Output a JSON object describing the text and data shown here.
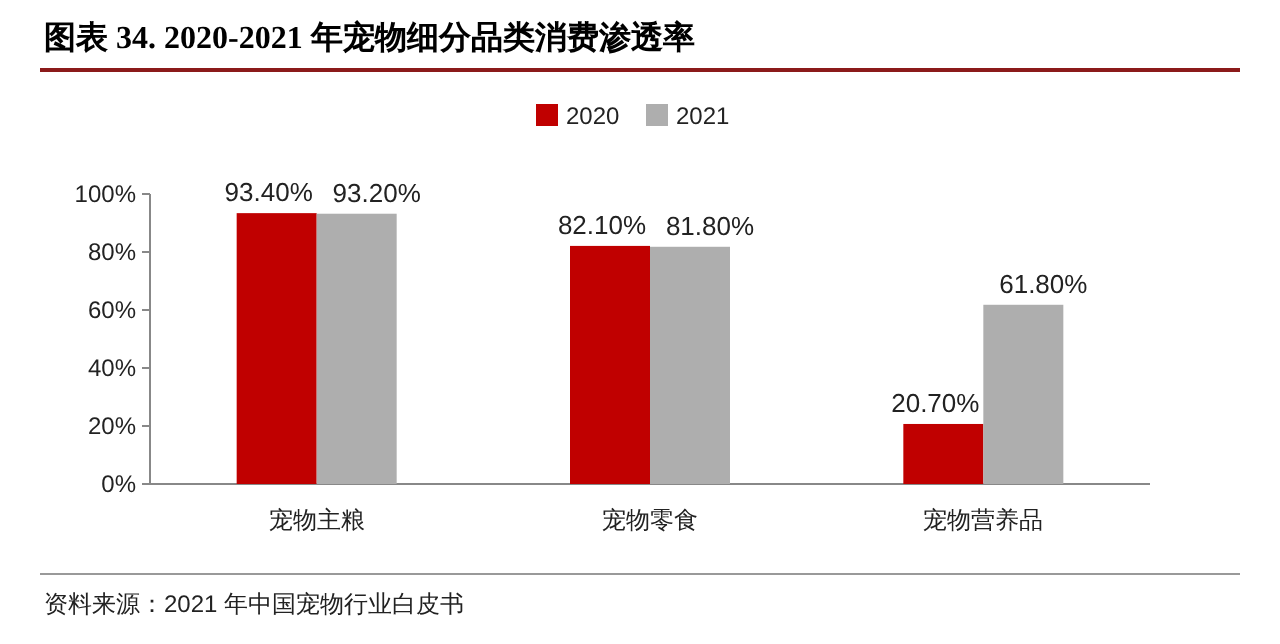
{
  "chart_data": {
    "type": "bar",
    "title": "图表 34. 2020-2021 年宠物细分品类消费渗透率",
    "categories": [
      "宠物主粮",
      "宠物零食",
      "宠物营养品"
    ],
    "series": [
      {
        "name": "2020",
        "color": "#c00000",
        "values": [
          93.4,
          82.1,
          20.7
        ],
        "value_labels": [
          "93.40%",
          "82.10%",
          "20.70%"
        ]
      },
      {
        "name": "2021",
        "color": "#aeaeae",
        "values": [
          93.2,
          81.8,
          61.8
        ],
        "value_labels": [
          "93.20%",
          "81.80%",
          "61.80%"
        ]
      }
    ],
    "ylim": [
      0,
      100
    ],
    "yticks": [
      {
        "value": 0,
        "label": "0%"
      },
      {
        "value": 20,
        "label": "20%"
      },
      {
        "value": 40,
        "label": "40%"
      },
      {
        "value": 60,
        "label": "60%"
      },
      {
        "value": 80,
        "label": "80%"
      },
      {
        "value": 100,
        "label": "100%"
      }
    ],
    "legend": "top",
    "grid": false,
    "annotations": [
      "资料来源：2021 年中国宠物行业白皮书"
    ]
  }
}
